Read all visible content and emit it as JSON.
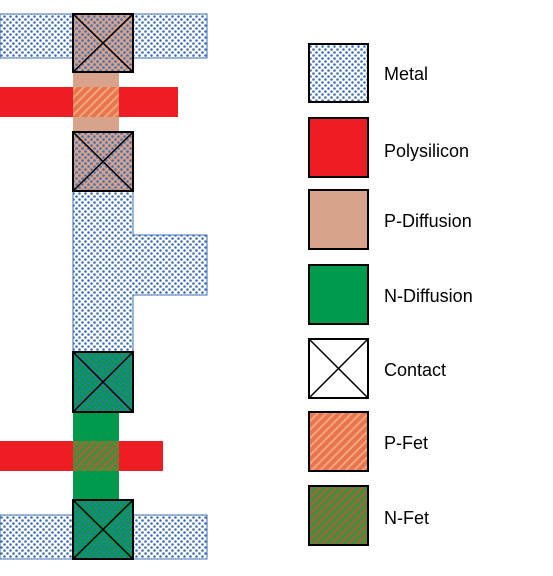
{
  "legend": {
    "items": [
      {
        "key": "metal",
        "label": "Metal",
        "swatch": "metal-pattern",
        "color": "#3f6fb6"
      },
      {
        "key": "polysilicon",
        "label": "Polysilicon",
        "swatch": "poly",
        "color": "#ee1c25"
      },
      {
        "key": "pdiffusion",
        "label": "P-Diffusion",
        "swatch": "pdiff",
        "color": "#d7a38a"
      },
      {
        "key": "ndiffusion",
        "label": "N-Diffusion",
        "swatch": "ndiff",
        "color": "#009a4d"
      },
      {
        "key": "contact",
        "label": "Contact",
        "swatch": "contact",
        "color": "#000000"
      },
      {
        "key": "pfet",
        "label": "P-Fet",
        "swatch": "pfet",
        "color": "#e9754e"
      },
      {
        "key": "nfet",
        "label": "N-Fet",
        "swatch": "nfet",
        "color": "#7f7a3a"
      }
    ]
  },
  "colors": {
    "metal_dot": "#3f6fb6",
    "polysilicon": "#ee1c25",
    "p_diffusion": "#d7a38a",
    "n_diffusion": "#009a4d",
    "p_fet_base": "#e9754e",
    "p_fet_hatch": "#f3a67c",
    "n_fet_base": "#4d8a3a",
    "n_fet_hatch": "#a0663a"
  }
}
